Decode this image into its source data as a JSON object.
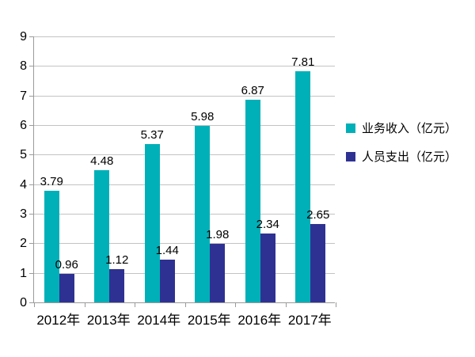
{
  "chart_data": {
    "type": "bar",
    "title": "",
    "xlabel": "",
    "ylabel": "",
    "categories": [
      "2012年",
      "2013年",
      "2014年",
      "2015年",
      "2016年",
      "2017年"
    ],
    "series": [
      {
        "name": "业务收入（亿元）",
        "color": "#00b0b8",
        "values": [
          3.79,
          4.48,
          5.37,
          5.98,
          6.87,
          7.81
        ]
      },
      {
        "name": "人员支出（亿元）",
        "color": "#2e3192",
        "values": [
          0.96,
          1.12,
          1.44,
          1.98,
          2.34,
          2.65
        ]
      }
    ],
    "ylim": [
      0,
      9
    ],
    "ytick_step": 1,
    "yticks": [
      "0",
      "1",
      "2",
      "3",
      "4",
      "5",
      "6",
      "7",
      "8",
      "9"
    ],
    "value_label_decimals": 2,
    "grid": true,
    "legend_position": "right"
  },
  "colors": {
    "background": "#ffffff",
    "gridline": "#c3c3c3",
    "axis": "#9b9b9b",
    "text": "#000000"
  }
}
